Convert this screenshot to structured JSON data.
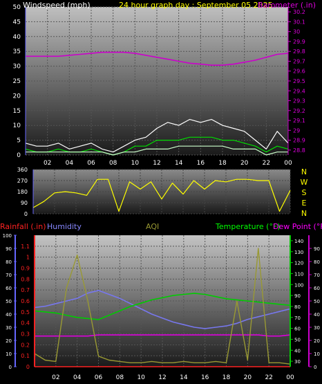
{
  "chart_data": [
    {
      "type": "line",
      "title": "24 hour graph day : September 05 2025",
      "ylabel_left": "Windspeed (mph)",
      "ylabel_right": "Barometer (.in)",
      "yticks_left": [
        "0",
        "5",
        "10",
        "15",
        "20",
        "25",
        "30",
        "35",
        "40",
        "45",
        "50"
      ],
      "ylim_left": [
        0,
        50
      ],
      "yticks_right": [
        "28.8",
        "28.9",
        "29",
        "29.1",
        "29.2",
        "29.3",
        "29.4",
        "29.5",
        "29.6",
        "29.7",
        "29.8",
        "29.9",
        "30",
        "30.1",
        "30.2"
      ],
      "ylim_right": [
        28.75,
        30.25
      ],
      "xticks": [
        "02",
        "04",
        "06",
        "08",
        "10",
        "12",
        "14",
        "16",
        "18",
        "20",
        "22",
        "00"
      ],
      "xlim": [
        0,
        24
      ],
      "grid": true,
      "series": [
        {
          "axis": "right",
          "color": "#cc00cc",
          "x": [
            0,
            1,
            2,
            3,
            4,
            5,
            6,
            7,
            8,
            9,
            10,
            11,
            12,
            13,
            14,
            15,
            16,
            17,
            18,
            19,
            20,
            21,
            22,
            23,
            24
          ],
          "values": [
            29.75,
            29.75,
            29.75,
            29.75,
            29.76,
            29.77,
            29.78,
            29.79,
            29.79,
            29.79,
            29.78,
            29.76,
            29.74,
            29.72,
            29.7,
            29.68,
            29.67,
            29.66,
            29.66,
            29.67,
            29.69,
            29.71,
            29.74,
            29.77,
            29.78
          ]
        },
        {
          "axis": "left",
          "color": "#ffffff",
          "x": [
            0,
            1,
            2,
            3,
            4,
            5,
            6,
            7,
            8,
            9,
            10,
            11,
            12,
            13,
            14,
            15,
            16,
            17,
            18,
            19,
            20,
            21,
            22,
            23,
            24
          ],
          "values": [
            4,
            3,
            3,
            4,
            2,
            3,
            4,
            2,
            1,
            3,
            5,
            6,
            9,
            11,
            10,
            12,
            11,
            12,
            10,
            9,
            8,
            5,
            2,
            8,
            4
          ]
        },
        {
          "axis": "left",
          "color": "#00dd00",
          "x": [
            0,
            1,
            2,
            3,
            4,
            5,
            6,
            7,
            8,
            9,
            10,
            11,
            12,
            13,
            14,
            15,
            16,
            17,
            18,
            19,
            20,
            21,
            22,
            23,
            24
          ],
          "values": [
            2,
            1,
            1,
            2,
            1,
            1,
            2,
            1,
            0,
            1,
            3,
            3,
            5,
            5,
            5,
            6,
            6,
            6,
            5,
            5,
            4,
            3,
            1,
            3,
            2
          ]
        },
        {
          "axis": "left",
          "color": "#ccffcc",
          "x": [
            0,
            1,
            2,
            3,
            4,
            5,
            6,
            7,
            8,
            9,
            10,
            11,
            12,
            13,
            14,
            15,
            16,
            17,
            18,
            19,
            20,
            21,
            22,
            23,
            24
          ],
          "values": [
            1,
            1,
            1,
            1,
            1,
            1,
            1,
            1,
            0,
            1,
            1,
            2,
            2,
            2,
            3,
            3,
            3,
            3,
            3,
            2,
            2,
            2,
            0,
            1,
            1
          ]
        }
      ]
    },
    {
      "type": "line",
      "ylabel_right": [
        "N",
        "W",
        "S",
        "E",
        "N"
      ],
      "yticks_left": [
        "0",
        "90",
        "180",
        "270",
        "360"
      ],
      "ylim": [
        0,
        360
      ],
      "xlim": [
        0,
        24
      ],
      "series": [
        {
          "color": "#ffff00",
          "x": [
            0,
            1,
            2,
            3,
            4,
            5,
            6,
            7,
            8,
            9,
            10,
            11,
            12,
            13,
            14,
            15,
            16,
            17,
            18,
            19,
            20,
            21,
            22,
            23,
            24
          ],
          "values": [
            50,
            100,
            170,
            180,
            170,
            150,
            280,
            280,
            20,
            260,
            200,
            260,
            120,
            250,
            160,
            270,
            200,
            270,
            260,
            280,
            280,
            270,
            270,
            20,
            190
          ]
        }
      ]
    },
    {
      "type": "line",
      "legend": [
        "Rainfall (.in)",
        "Humidity",
        "AQI",
        "Temperature (°F)",
        "Dew Point (°F)"
      ],
      "yticks_humidity": [
        "0",
        "10",
        "20",
        "30",
        "40",
        "50",
        "60",
        "70",
        "80",
        "90",
        "100"
      ],
      "yticks_rain": [
        "0",
        "0.1",
        "0.2",
        "0.3",
        "0.4",
        "0.5",
        "0.6",
        "0.7",
        "0.8",
        "0.9",
        "1",
        "1.1"
      ],
      "yticks_temp": [
        "30",
        "40",
        "50",
        "60",
        "70",
        "80",
        "90",
        "100",
        "110",
        "120",
        "130",
        "140"
      ],
      "yticks_dew": [
        "0",
        "10",
        "20",
        "30",
        "40",
        "50",
        "60",
        "70",
        "80",
        "90"
      ],
      "ylim_humidity": [
        0,
        100
      ],
      "ylim_temp": [
        25,
        145
      ],
      "xticks": [
        "02",
        "04",
        "06",
        "08",
        "10",
        "12",
        "14",
        "16",
        "18",
        "20",
        "22",
        "00"
      ],
      "xlim": [
        0,
        24
      ],
      "grid": true,
      "series": [
        {
          "name": "Rainfall (.in)",
          "axis": "rain",
          "color": "#ff2222",
          "x": [
            0,
            24
          ],
          "values": [
            0,
            0
          ]
        },
        {
          "name": "Humidity",
          "axis": "humidity",
          "color": "#7777ee",
          "x": [
            0,
            1,
            2,
            3,
            4,
            5,
            6,
            7,
            8,
            9,
            10,
            11,
            12,
            13,
            14,
            15,
            16,
            17,
            18,
            19,
            20,
            21,
            22,
            23,
            24
          ],
          "values": [
            45,
            46,
            48,
            50,
            52,
            56,
            58,
            55,
            52,
            48,
            44,
            40,
            37,
            34,
            32,
            30,
            29,
            30,
            31,
            33,
            36,
            38,
            40,
            42,
            44
          ]
        },
        {
          "name": "Temperature (°F)",
          "axis": "temp",
          "color": "#00cc00",
          "x": [
            0,
            1,
            2,
            3,
            4,
            5,
            6,
            7,
            8,
            9,
            10,
            11,
            12,
            13,
            14,
            15,
            16,
            17,
            18,
            19,
            20,
            21,
            22,
            23,
            24
          ],
          "values": [
            76,
            75,
            74,
            72,
            70,
            69,
            68,
            72,
            76,
            80,
            83,
            86,
            88,
            90,
            91,
            92,
            91,
            89,
            87,
            86,
            85,
            84,
            83,
            82,
            81
          ]
        },
        {
          "name": "Dew Point (°F)",
          "axis": "temp",
          "color": "#dd00dd",
          "x": [
            0,
            1,
            2,
            3,
            4,
            5,
            6,
            7,
            8,
            9,
            10,
            11,
            12,
            13,
            14,
            15,
            16,
            17,
            18,
            19,
            20,
            21,
            22,
            23,
            24
          ],
          "values": [
            53,
            53,
            53,
            53,
            53,
            53,
            54,
            54,
            54,
            54,
            54,
            54,
            54,
            54,
            54,
            54,
            54,
            54,
            54,
            54,
            54,
            54,
            53,
            53,
            54
          ]
        },
        {
          "name": "AQI",
          "axis": "humidity",
          "color": "#999933",
          "x": [
            0,
            1,
            2,
            3,
            4,
            5,
            6,
            7,
            8,
            9,
            10,
            11,
            12,
            13,
            14,
            15,
            16,
            17,
            18,
            19,
            20,
            21,
            22,
            23,
            24
          ],
          "values": [
            10,
            5,
            4,
            60,
            85,
            50,
            8,
            5,
            4,
            3,
            3,
            4,
            3,
            3,
            4,
            3,
            3,
            4,
            3,
            50,
            5,
            90,
            3,
            3,
            2
          ]
        }
      ]
    }
  ]
}
